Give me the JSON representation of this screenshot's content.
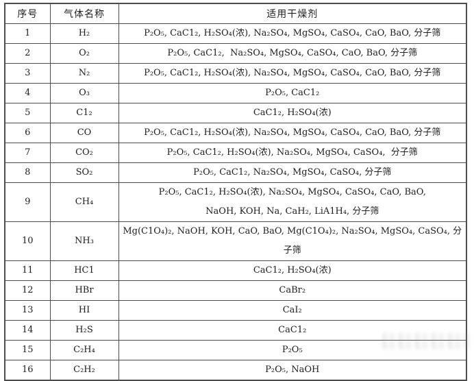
{
  "table": {
    "border_color": "#4b4b4b",
    "text_color": "#1d1d1d",
    "background_color": "#ffffff",
    "columns": [
      {
        "key": "no",
        "label": "序号"
      },
      {
        "key": "gas",
        "label": "气体名称"
      },
      {
        "key": "desiccant",
        "label": "适用干燥剂"
      }
    ],
    "rows": [
      {
        "no": "1",
        "gas": "H₂",
        "desiccants": [
          "P₂O₅, CaC1₂, H₂SO₄(浓), Na₂SO₄, MgSO₄, CaSO₄, CaO, BaO, 分子筛"
        ]
      },
      {
        "no": "2",
        "gas": "O₂",
        "desiccants": [
          "P₂O₅, CaC1₂,  Na₂SO₄, MgSO₄, CaSO₄, CaO, BaO, 分子筛"
        ]
      },
      {
        "no": "3",
        "gas": "N₂",
        "desiccants": [
          "P₂O₅, CaC1₂, H₂SO₄(浓), Na₂SO₄, MgSO₄, CaSO₄, CaO, BaO, 分子筛"
        ]
      },
      {
        "no": "4",
        "gas": "O₃",
        "desiccants": [
          "P₂O₅, CaC1₂"
        ]
      },
      {
        "no": "5",
        "gas": "C1₂",
        "desiccants": [
          "CaC1₂, H₂SO₄(浓)"
        ]
      },
      {
        "no": "6",
        "gas": "CO",
        "desiccants": [
          "P₂O₅, CaC1₂, H₂SO₄(浓), Na₂SO₄, MgSO₄, CaSO₄, CaO, BaO, 分子筛"
        ]
      },
      {
        "no": "7",
        "gas": "CO₂",
        "desiccants": [
          "P₂O₅, CaC1₂, H₂SO₄(浓), Na₂SO₄, MgSO₄, CaSO₄,  分子筛"
        ]
      },
      {
        "no": "8",
        "gas": "SO₂",
        "desiccants": [
          "P₂O₅, CaC1₂, Na₂SO₄, MgSO₄, CaSO₄, 分子筛"
        ]
      },
      {
        "no": "9",
        "gas": "CH₄",
        "desiccants": [
          "P₂O₅, CaC1₂, H₂SO₄(浓), Na₂SO₄, MgSO₄, CaSO₄, CaO, BaO,",
          "NaOH, KOH, Na, CaH₂, LiA1H₄, 分子筛"
        ]
      },
      {
        "no": "10",
        "gas": "NH₃",
        "desiccants": [
          "Mg(C1O₄)₂, NaOH, KOH, CaO, BaO, Mg(C1O₄)₂, Na₂SO₄, MgSO₄, CaSO₄, 分子筛"
        ]
      },
      {
        "no": "11",
        "gas": "HC1",
        "desiccants": [
          "CaC1₂, H₂SO₄(浓)"
        ]
      },
      {
        "no": "12",
        "gas": "HBr",
        "desiccants": [
          "CaBr₂"
        ]
      },
      {
        "no": "13",
        "gas": "HI",
        "desiccants": [
          "CaI₂"
        ]
      },
      {
        "no": "14",
        "gas": "H₂S",
        "desiccants": [
          "CaC1₂"
        ]
      },
      {
        "no": "15",
        "gas": "C₂H₄",
        "desiccants": [
          "P₂O₅"
        ]
      },
      {
        "no": "16",
        "gas": "C₂H₂",
        "desiccants": [
          "P₂O₅, NaOH"
        ]
      }
    ]
  }
}
